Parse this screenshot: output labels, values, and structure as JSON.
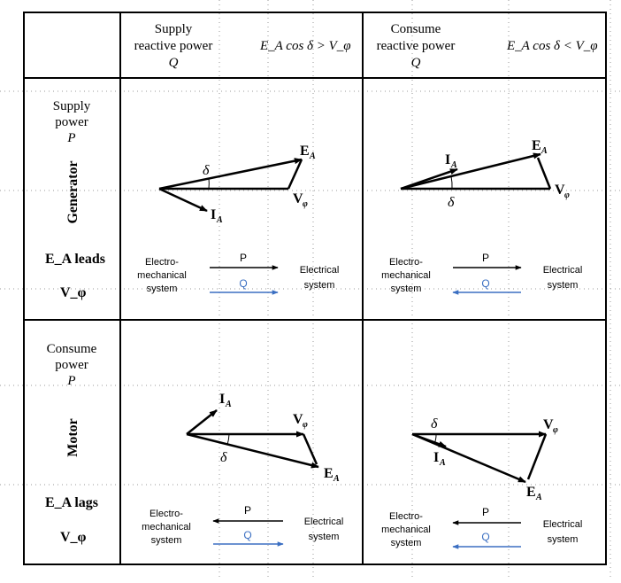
{
  "header": {
    "supply_reactive": [
      "Supply",
      "reactive power",
      "Q"
    ],
    "supply_condition": "E_A cos δ > V_φ",
    "consume_reactive": [
      "Consume",
      "reactive power",
      "Q"
    ],
    "consume_condition": "E_A cos δ < V_φ"
  },
  "rows": {
    "generator": {
      "power_text": [
        "Supply",
        "power",
        "P"
      ],
      "machine": "Generator",
      "leads_lags": "E_A leads",
      "v_phi": "V_φ"
    },
    "motor": {
      "power_text": [
        "Consume",
        "power",
        "P"
      ],
      "machine": "Motor",
      "leads_lags": "E_A lags",
      "v_phi": "V_φ"
    }
  },
  "phasor_labels": {
    "ea": "E",
    "ea_sub": "A",
    "ia": "I",
    "ia_sub": "A",
    "v": "V",
    "v_sub": "φ",
    "delta": "δ"
  },
  "flow_labels": {
    "em_system": [
      "Electro-",
      "mechanical",
      "system"
    ],
    "elec_system": [
      "Electrical",
      "system"
    ],
    "p": "P",
    "q": "Q"
  },
  "colors": {
    "p_arrow": "#000000",
    "q_arrow": "#3b6fc2",
    "grid": "#000000"
  }
}
